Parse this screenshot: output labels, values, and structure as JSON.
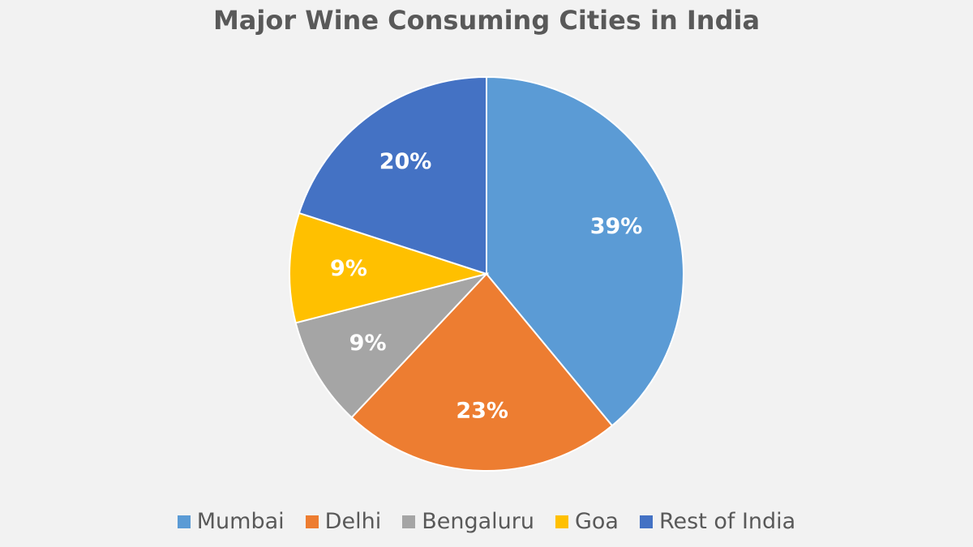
{
  "chart_data": {
    "type": "pie",
    "title": "Major Wine Consuming Cities in India",
    "slices": [
      {
        "name": "Mumbai",
        "value": 39,
        "label": "39%",
        "color": "#5b9bd5"
      },
      {
        "name": "Delhi",
        "value": 23,
        "label": "23%",
        "color": "#ed7d31"
      },
      {
        "name": "Bengaluru",
        "value": 9,
        "label": "9%",
        "color": "#a5a5a5"
      },
      {
        "name": "Goa",
        "value": 9,
        "label": "9%",
        "color": "#ffc000"
      },
      {
        "name": "Rest of India",
        "value": 20,
        "label": "20%",
        "color": "#4472c4"
      }
    ],
    "legend_position": "bottom",
    "data_labels": "inside"
  }
}
